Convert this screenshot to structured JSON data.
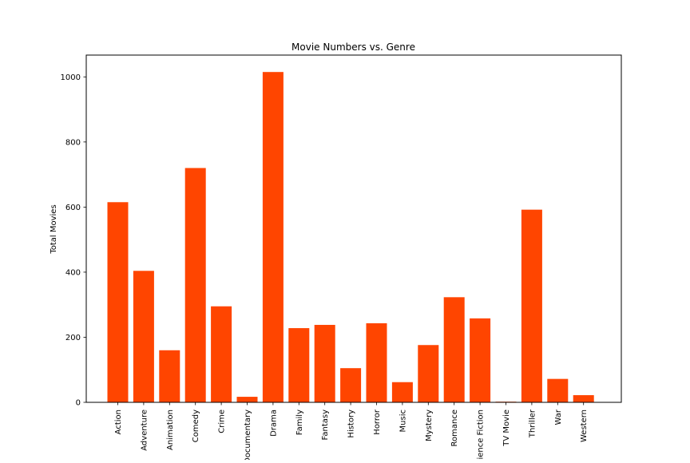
{
  "chart_data": {
    "type": "bar",
    "title": "Movie Numbers vs. Genre",
    "xlabel": "",
    "ylabel": "Total Movies",
    "categories": [
      "Action",
      "Adventure",
      "Animation",
      "Comedy",
      "Crime",
      "Documentary",
      "Drama",
      "Family",
      "Fantasy",
      "History",
      "Horror",
      "Music",
      "Mystery",
      "Romance",
      "Science Fiction",
      "TV Movie",
      "Thriller",
      "War",
      "Western"
    ],
    "values": [
      615,
      404,
      160,
      720,
      295,
      17,
      1015,
      228,
      238,
      105,
      243,
      62,
      176,
      323,
      258,
      2,
      592,
      72,
      22
    ],
    "ylim": [
      0,
      1067
    ],
    "yticks": [
      0,
      200,
      400,
      600,
      800,
      1000
    ],
    "grid": false,
    "bar_color": "#ff4500"
  }
}
